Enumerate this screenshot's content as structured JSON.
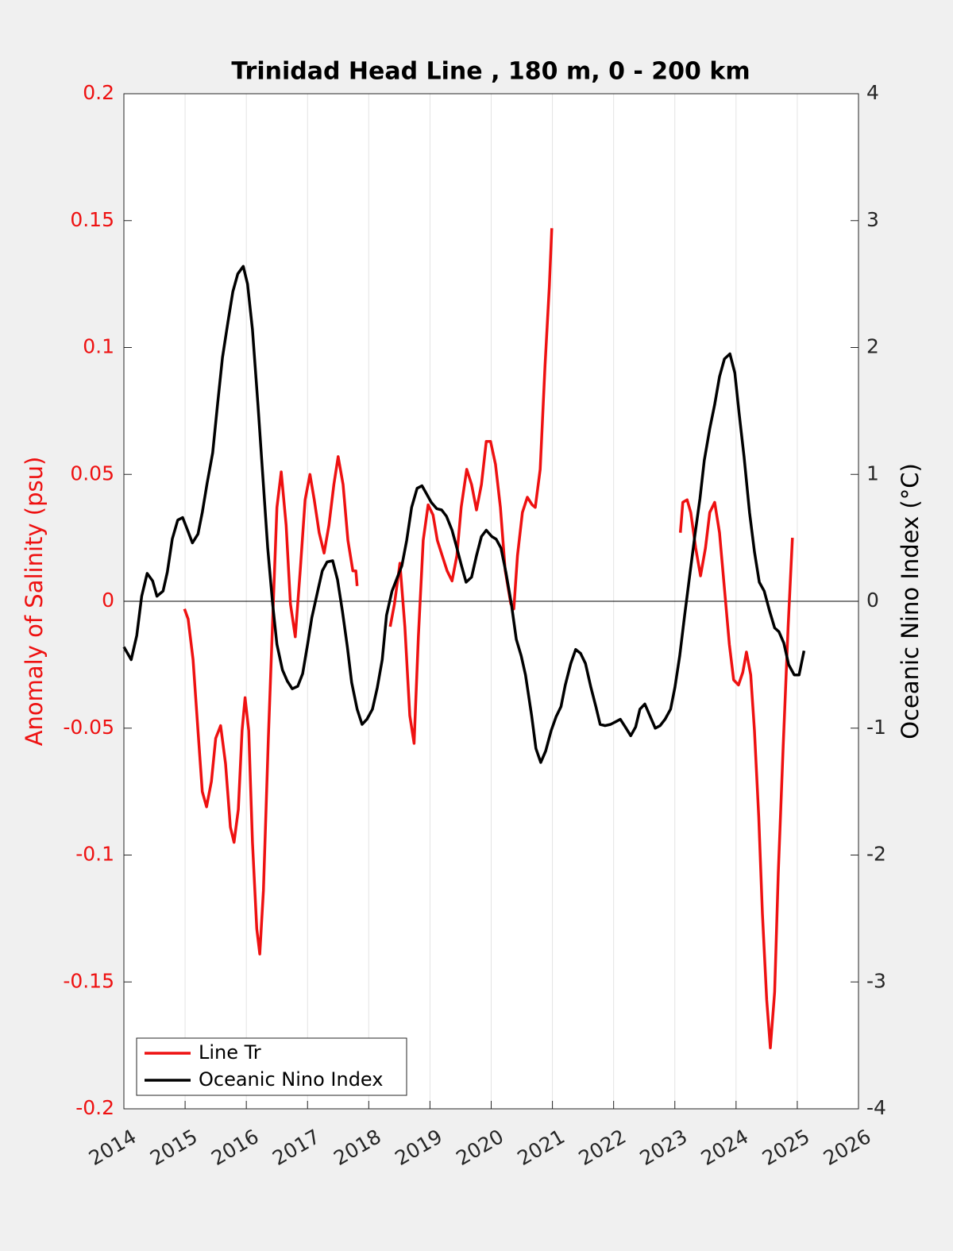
{
  "chart_data": {
    "type": "line",
    "title": "Trinidad Head Line , 180 m, 0 - 200 km",
    "ylabel": "Anomaly of Salinity (psu)",
    "y2label": "Oceanic Nino Index (°C)",
    "xlim": [
      2014,
      2026
    ],
    "xticks": [
      2014,
      2015,
      2016,
      2017,
      2018,
      2019,
      2020,
      2021,
      2022,
      2023,
      2024,
      2025,
      2026
    ],
    "ylim": [
      -0.2,
      0.2
    ],
    "yticks": [
      -0.2,
      -0.15,
      -0.1,
      -0.05,
      0,
      0.05,
      0.1,
      0.15,
      0.2
    ],
    "y2lim": [
      -4,
      4
    ],
    "y2ticks": [
      -4,
      -3,
      -2,
      -1,
      0,
      1,
      2,
      3,
      4
    ],
    "grid": "x",
    "legend": "lower left",
    "series": [
      {
        "name": "Line Tr",
        "color": "#ee1111",
        "x": [
          2014.99,
          2015.05,
          2015.13,
          2015.21,
          2015.28,
          2015.35,
          2015.43,
          2015.5,
          2015.58,
          2015.66,
          2015.74,
          2015.8,
          2015.87,
          2015.93,
          2015.98,
          2016.04,
          2016.1,
          2016.17,
          2016.22,
          2016.28,
          2016.36,
          2016.44,
          2016.5,
          2016.57,
          2016.65,
          2016.72,
          2016.8,
          2016.88,
          2016.96,
          2017.04,
          2017.11,
          2017.19,
          2017.27,
          2017.35,
          2017.43,
          2017.5,
          2017.58,
          2017.66,
          2017.74,
          2017.79,
          2017.81,
          2018.1,
          2018.35,
          2018.42,
          2018.51,
          2018.59,
          2018.67,
          2018.74,
          2018.81,
          2018.89,
          2018.97,
          2019.05,
          2019.12,
          2019.2,
          2019.28,
          2019.36,
          2019.44,
          2019.51,
          2019.6,
          2019.68,
          2019.76,
          2019.84,
          2019.92,
          2019.99,
          2020.07,
          2020.15,
          2020.23,
          2020.32,
          2020.37,
          2020.43,
          2020.51,
          2020.59,
          2020.67,
          2020.72,
          2020.8,
          2020.88,
          2020.95,
          2020.99,
          2022.0,
          2023.09,
          2023.13,
          2023.2,
          2023.26,
          2023.34,
          2023.42,
          2023.5,
          2023.57,
          2023.65,
          2023.73,
          2023.81,
          2023.89,
          2023.96,
          2024.04,
          2024.11,
          2024.17,
          2024.24,
          2024.3,
          2024.37,
          2024.43,
          2024.5,
          2024.56,
          2024.63,
          2024.69,
          2024.77,
          2024.85,
          2024.92
        ],
        "values": [
          -0.003,
          -0.007,
          -0.023,
          -0.051,
          -0.075,
          -0.081,
          -0.071,
          -0.054,
          -0.049,
          -0.064,
          -0.089,
          -0.095,
          -0.082,
          -0.051,
          -0.038,
          -0.051,
          -0.095,
          -0.129,
          -0.139,
          -0.114,
          -0.054,
          -0.001,
          0.037,
          0.051,
          0.03,
          -0.001,
          -0.014,
          0.012,
          0.04,
          0.05,
          0.04,
          0.027,
          0.019,
          0.03,
          0.046,
          0.057,
          0.046,
          0.024,
          0.012,
          0.012,
          0.006,
          null,
          -0.01,
          -0.001,
          0.015,
          -0.01,
          -0.045,
          -0.056,
          -0.014,
          0.024,
          0.038,
          0.034,
          0.024,
          0.018,
          0.012,
          0.008,
          0.018,
          0.037,
          0.052,
          0.046,
          0.036,
          0.046,
          0.063,
          0.063,
          0.054,
          0.037,
          0.012,
          -0.001,
          -0.003,
          0.018,
          0.035,
          0.041,
          0.038,
          0.037,
          0.052,
          0.093,
          0.124,
          0.147,
          null,
          0.027,
          0.039,
          0.04,
          0.035,
          0.021,
          0.01,
          0.021,
          0.035,
          0.039,
          0.027,
          0.005,
          -0.017,
          -0.031,
          -0.033,
          -0.028,
          -0.02,
          -0.029,
          -0.051,
          -0.085,
          -0.123,
          -0.157,
          -0.176,
          -0.154,
          -0.107,
          -0.057,
          -0.01,
          0.025
        ]
      },
      {
        "name": "Oceanic Nino Index",
        "color": "#000000",
        "axis": "y2",
        "x": [
          2014.0,
          2014.12,
          2014.21,
          2014.29,
          2014.38,
          2014.47,
          2014.54,
          2014.64,
          2014.71,
          2014.79,
          2014.88,
          2014.96,
          2015.04,
          2015.12,
          2015.21,
          2015.28,
          2015.36,
          2015.45,
          2015.53,
          2015.61,
          2015.7,
          2015.78,
          2015.86,
          2015.95,
          2016.02,
          2016.1,
          2016.19,
          2016.27,
          2016.35,
          2016.43,
          2016.5,
          2016.59,
          2016.67,
          2016.75,
          2016.84,
          2016.92,
          2017.0,
          2017.07,
          2017.17,
          2017.24,
          2017.32,
          2017.41,
          2017.49,
          2017.57,
          2017.65,
          2017.72,
          2017.81,
          2017.89,
          2017.97,
          2018.06,
          2018.14,
          2018.22,
          2018.29,
          2018.38,
          2018.46,
          2018.54,
          2018.62,
          2018.7,
          2018.79,
          2018.87,
          2018.94,
          2019.02,
          2019.11,
          2019.19,
          2019.27,
          2019.36,
          2019.44,
          2019.51,
          2019.59,
          2019.68,
          2019.76,
          2019.84,
          2019.92,
          2020.01,
          2020.08,
          2020.16,
          2020.24,
          2020.33,
          2020.41,
          2020.49,
          2020.56,
          2020.66,
          2020.73,
          2020.81,
          2020.89,
          2020.98,
          2021.06,
          2021.14,
          2021.21,
          2021.3,
          2021.38,
          2021.46,
          2021.54,
          2021.63,
          2021.71,
          2021.78,
          2021.86,
          2021.95,
          2022.03,
          2022.11,
          2022.19,
          2022.28,
          2022.36,
          2022.43,
          2022.51,
          2022.6,
          2022.68,
          2022.76,
          2022.84,
          2022.93,
          2023.0,
          2023.08,
          2023.16,
          2023.25,
          2023.33,
          2023.41,
          2023.48,
          2023.57,
          2023.65,
          2023.73,
          2023.81,
          2023.9,
          2023.98,
          2024.05,
          2024.13,
          2024.22,
          2024.3,
          2024.38,
          2024.46,
          2024.55,
          2024.63,
          2024.7,
          2024.78,
          2024.86,
          2024.95,
          2025.03,
          2025.11
        ],
        "values": [
          -0.36,
          -0.46,
          -0.27,
          0.04,
          0.22,
          0.16,
          0.04,
          0.08,
          0.23,
          0.49,
          0.64,
          0.66,
          0.56,
          0.46,
          0.53,
          0.7,
          0.93,
          1.17,
          1.55,
          1.92,
          2.2,
          2.44,
          2.58,
          2.64,
          2.5,
          2.14,
          1.55,
          0.98,
          0.42,
          -0.02,
          -0.34,
          -0.54,
          -0.63,
          -0.69,
          -0.67,
          -0.57,
          -0.34,
          -0.13,
          0.09,
          0.24,
          0.31,
          0.32,
          0.17,
          -0.08,
          -0.36,
          -0.64,
          -0.85,
          -0.97,
          -0.93,
          -0.85,
          -0.68,
          -0.46,
          -0.11,
          0.08,
          0.18,
          0.28,
          0.48,
          0.74,
          0.89,
          0.91,
          0.85,
          0.78,
          0.73,
          0.72,
          0.67,
          0.56,
          0.42,
          0.29,
          0.15,
          0.19,
          0.36,
          0.51,
          0.56,
          0.51,
          0.49,
          0.42,
          0.23,
          -0.02,
          -0.3,
          -0.43,
          -0.58,
          -0.9,
          -1.16,
          -1.27,
          -1.18,
          -1.02,
          -0.91,
          -0.83,
          -0.66,
          -0.49,
          -0.38,
          -0.41,
          -0.49,
          -0.68,
          -0.83,
          -0.97,
          -0.98,
          -0.97,
          -0.95,
          -0.93,
          -0.99,
          -1.06,
          -0.99,
          -0.85,
          -0.81,
          -0.91,
          -1.0,
          -0.98,
          -0.93,
          -0.85,
          -0.68,
          -0.43,
          -0.11,
          0.23,
          0.53,
          0.81,
          1.11,
          1.36,
          1.55,
          1.77,
          1.91,
          1.95,
          1.8,
          1.48,
          1.14,
          0.7,
          0.39,
          0.15,
          0.08,
          -0.08,
          -0.21,
          -0.24,
          -0.33,
          -0.5,
          -0.58,
          -0.58,
          -0.39
        ]
      }
    ]
  }
}
